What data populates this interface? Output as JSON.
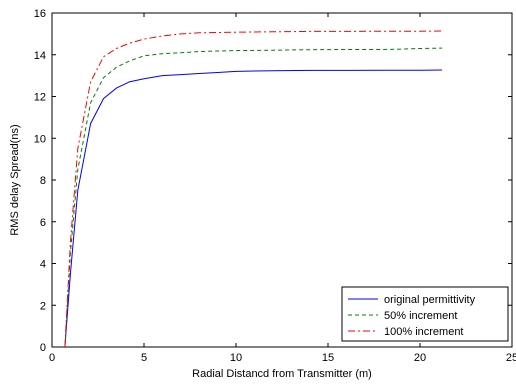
{
  "chart_data": {
    "type": "line",
    "title": "",
    "xlabel": "Radial Distancd from Transmitter (m)",
    "ylabel": "RMS delay Spread(ns)",
    "xlim": [
      0,
      25
    ],
    "ylim": [
      0,
      16
    ],
    "xticks": [
      0,
      5,
      10,
      15,
      20,
      25
    ],
    "yticks": [
      0,
      2,
      4,
      6,
      8,
      10,
      12,
      14,
      16
    ],
    "xtick_labels": [
      "0",
      "5",
      "10",
      "15",
      "20",
      "25"
    ],
    "ytick_labels": [
      "0",
      "2",
      "4",
      "6",
      "8",
      "10",
      "12",
      "14",
      "16"
    ],
    "grid": false,
    "legend_position": "bottom-right",
    "series": [
      {
        "name": "original permittivity",
        "color": "#0000ff",
        "style": "solid",
        "x": [
          0.7,
          1.0,
          1.4,
          2.1,
          2.8,
          3.5,
          4.2,
          5.0,
          6.0,
          7.0,
          8.0,
          9.0,
          10.0,
          11.0,
          12.0,
          14.0,
          16.0,
          18.0,
          20.0,
          21.2
        ],
        "y": [
          0,
          3.5,
          7.5,
          10.7,
          11.9,
          12.4,
          12.7,
          12.85,
          13.0,
          13.05,
          13.1,
          13.15,
          13.2,
          13.22,
          13.23,
          13.25,
          13.25,
          13.26,
          13.26,
          13.27
        ]
      },
      {
        "name": "50% increment",
        "color": "#008000",
        "style": "dashed",
        "x": [
          0.7,
          1.0,
          1.4,
          2.1,
          2.8,
          3.5,
          4.2,
          5.0,
          6.0,
          7.0,
          8.0,
          9.0,
          10.0,
          12.0,
          14.0,
          16.0,
          18.0,
          19.0,
          20.0,
          21.2
        ],
        "y": [
          0,
          4.5,
          8.5,
          11.7,
          12.9,
          13.4,
          13.7,
          13.95,
          14.05,
          14.1,
          14.15,
          14.18,
          14.2,
          14.22,
          14.24,
          14.25,
          14.25,
          14.27,
          14.3,
          14.32
        ]
      },
      {
        "name": "100% increment",
        "color": "#ff0000",
        "style": "dashdot",
        "x": [
          0.7,
          1.0,
          1.4,
          2.1,
          2.8,
          3.5,
          4.2,
          5.0,
          6.0,
          7.0,
          8.0,
          10.0,
          12.0,
          14.0,
          16.0,
          18.0,
          20.0,
          21.2
        ],
        "y": [
          0,
          5.0,
          9.5,
          12.7,
          13.9,
          14.3,
          14.55,
          14.75,
          14.9,
          15.0,
          15.05,
          15.08,
          15.1,
          15.12,
          15.12,
          15.13,
          15.13,
          15.14
        ]
      }
    ]
  }
}
